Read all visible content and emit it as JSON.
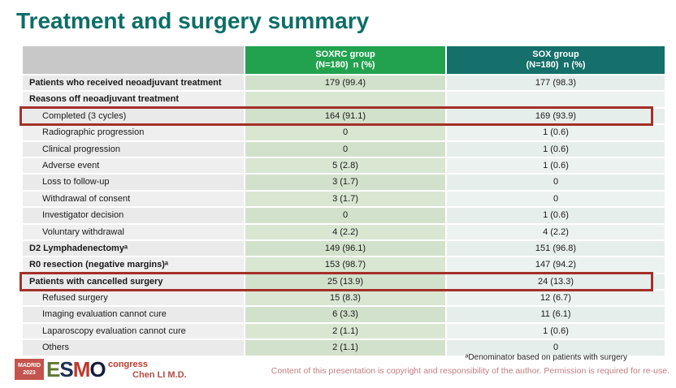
{
  "slide": {
    "title": "Treatment and surgery summary"
  },
  "table": {
    "header": {
      "soxrc_group": "SOXRC group",
      "soxrc_sub": "(N=180)  n (%)",
      "sox_group": "SOX group",
      "sox_sub": "(N=180)  n (%)"
    },
    "rows": [
      {
        "label": "Patients who received neoadjuvant treatment",
        "soxrc": "179 (99.4)",
        "sox": "177 (98.3)",
        "bold": true,
        "indent": false,
        "highlight": false
      },
      {
        "label": "Reasons off neoadjuvant treatment",
        "soxrc": "",
        "sox": "",
        "bold": true,
        "indent": false,
        "highlight": false
      },
      {
        "label": "Completed (3 cycles)",
        "soxrc": "164 (91.1)",
        "sox": "169 (93.9)",
        "bold": false,
        "indent": true,
        "highlight": true
      },
      {
        "label": "Radiographic progression",
        "soxrc": "0",
        "sox": "1 (0.6)",
        "bold": false,
        "indent": true,
        "highlight": false
      },
      {
        "label": "Clinical progression",
        "soxrc": "0",
        "sox": "1 (0.6)",
        "bold": false,
        "indent": true,
        "highlight": false
      },
      {
        "label": "Adverse event",
        "soxrc": "5 (2.8)",
        "sox": "1 (0.6)",
        "bold": false,
        "indent": true,
        "highlight": false
      },
      {
        "label": "Loss to follow-up",
        "soxrc": "3 (1.7)",
        "sox": "0",
        "bold": false,
        "indent": true,
        "highlight": false
      },
      {
        "label": "Withdrawal of consent",
        "soxrc": "3 (1.7)",
        "sox": "0",
        "bold": false,
        "indent": true,
        "highlight": false
      },
      {
        "label": "Investigator decision",
        "soxrc": "0",
        "sox": "1 (0.6)",
        "bold": false,
        "indent": true,
        "highlight": false
      },
      {
        "label": "Voluntary withdrawal",
        "soxrc": "4 (2.2)",
        "sox": "4 (2.2)",
        "bold": false,
        "indent": true,
        "highlight": false
      },
      {
        "label": "D2 Lymphadenectomyᵃ",
        "soxrc": "149 (96.1)",
        "sox": "151 (96.8)",
        "bold": true,
        "indent": false,
        "highlight": false
      },
      {
        "label": "R0 resection (negative margins)ᵃ",
        "soxrc": "153 (98.7)",
        "sox": "147 (94.2)",
        "bold": true,
        "indent": false,
        "highlight": false
      },
      {
        "label": "Patients with cancelled surgery",
        "soxrc": "25 (13.9)",
        "sox": "24 (13.3)",
        "bold": true,
        "indent": false,
        "highlight": true
      },
      {
        "label": "Refused surgery",
        "soxrc": "15 (8.3)",
        "sox": "12 (6.7)",
        "bold": false,
        "indent": true,
        "highlight": false
      },
      {
        "label": "Imaging evaluation cannot cure",
        "soxrc": "6 (3.3)",
        "sox": "11 (6.1)",
        "bold": false,
        "indent": true,
        "highlight": false
      },
      {
        "label": "Laparoscopy evaluation cannot cure",
        "soxrc": "2 (1.1)",
        "sox": "1 (0.6)",
        "bold": false,
        "indent": true,
        "highlight": false
      },
      {
        "label": "Others",
        "soxrc": "2 (1.1)",
        "sox": "0",
        "bold": false,
        "indent": true,
        "highlight": false
      }
    ]
  },
  "footer": {
    "logo": {
      "badge_line1": "MADRID",
      "badge_line2": "2023",
      "letter_e": "E",
      "letter_s": "S",
      "letter_m": "M",
      "letter_o": "O",
      "congress": "congress"
    },
    "author": "Chen LI M.D.",
    "footnote": "ᵃDenominator based on patients with surgery",
    "copyright": "Content of this presentation is copyright and responsibility of the author. Permission is required for re-use."
  },
  "colors": {
    "title_teal": "#0d6e67",
    "soxrc_header_green": "#22a24f",
    "sox_header_teal": "#156f6b",
    "soxrc_cell_green": "#d5e3cf",
    "sox_cell_gray": "#e9efec",
    "label_cell_gray": "#ededed",
    "highlight_border_red": "#a33028",
    "copyright_rose": "#c37d85",
    "author_red": "#ae4f46"
  }
}
